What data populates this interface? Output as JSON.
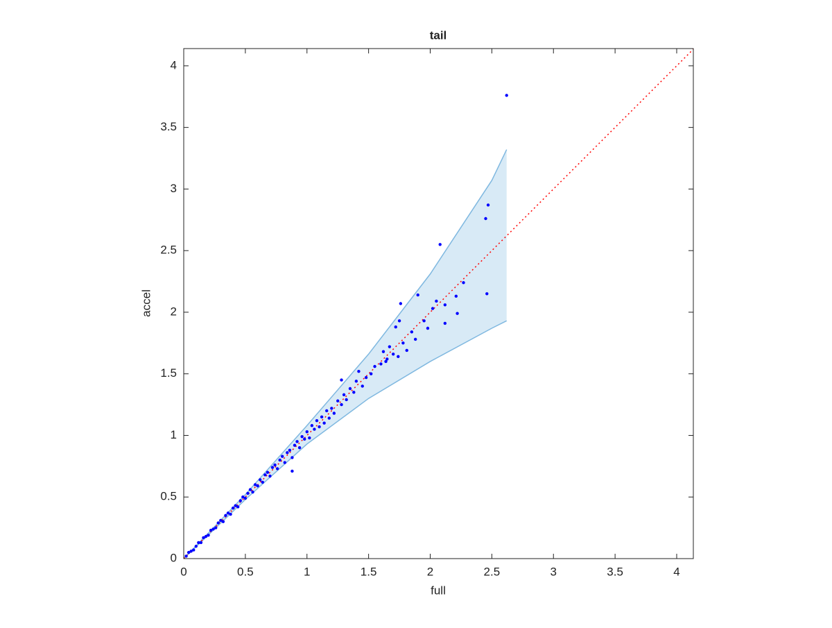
{
  "chart_data": {
    "type": "scatter",
    "title": "tail",
    "xlabel": "full",
    "ylabel": "accel",
    "xlim": [
      0,
      4.135
    ],
    "ylim": [
      0,
      4.14
    ],
    "xticks": [
      0,
      0.5,
      1,
      1.5,
      2,
      2.5,
      3,
      3.5,
      4
    ],
    "yticks": [
      0,
      0.5,
      1,
      1.5,
      2,
      2.5,
      3,
      3.5,
      4
    ],
    "band": {
      "color": "#7fb8e0",
      "x": [
        0,
        0.5,
        1,
        1.5,
        2,
        2.5,
        2.62
      ],
      "upper": [
        0,
        0.52,
        1.08,
        1.66,
        2.31,
        3.07,
        3.32
      ],
      "lower": [
        0,
        0.48,
        0.93,
        1.3,
        1.6,
        1.87,
        1.93
      ]
    },
    "reference_line": {
      "color": "#ff0000",
      "x": [
        0,
        4.135
      ],
      "y": [
        0,
        4.135
      ]
    },
    "series": [
      {
        "color": "#0000ff",
        "x": [
          0.02,
          0.04,
          0.06,
          0.08,
          0.1,
          0.12,
          0.14,
          0.16,
          0.18,
          0.2,
          0.22,
          0.24,
          0.26,
          0.28,
          0.3,
          0.32,
          0.34,
          0.36,
          0.38,
          0.4,
          0.42,
          0.44,
          0.46,
          0.48,
          0.5,
          0.52,
          0.54,
          0.56,
          0.58,
          0.6,
          0.62,
          0.64,
          0.66,
          0.68,
          0.7,
          0.72,
          0.74,
          0.76,
          0.78,
          0.8,
          0.82,
          0.84,
          0.86,
          0.88,
          0.88,
          0.9,
          0.92,
          0.94,
          0.96,
          0.98,
          1.0,
          1.02,
          1.04,
          1.06,
          1.08,
          1.1,
          1.12,
          1.14,
          1.16,
          1.18,
          1.2,
          1.22,
          1.25,
          1.28,
          1.3,
          1.32,
          1.28,
          1.35,
          1.38,
          1.4,
          1.42,
          1.45,
          1.48,
          1.52,
          1.55,
          1.6,
          1.62,
          1.65,
          1.67,
          1.7,
          1.72,
          1.75,
          1.78,
          1.81,
          1.85,
          1.88,
          1.9,
          1.95,
          1.98,
          2.02,
          2.05,
          2.12,
          2.12,
          2.21,
          2.22,
          2.27,
          2.08,
          2.45,
          2.47,
          2.46,
          2.62,
          1.76,
          1.64,
          1.74
        ],
        "y": [
          0.02,
          0.05,
          0.06,
          0.07,
          0.1,
          0.13,
          0.13,
          0.17,
          0.18,
          0.19,
          0.23,
          0.24,
          0.25,
          0.29,
          0.31,
          0.3,
          0.35,
          0.37,
          0.36,
          0.41,
          0.43,
          0.42,
          0.47,
          0.5,
          0.49,
          0.53,
          0.56,
          0.54,
          0.6,
          0.59,
          0.64,
          0.62,
          0.68,
          0.7,
          0.67,
          0.74,
          0.76,
          0.73,
          0.8,
          0.83,
          0.78,
          0.86,
          0.88,
          0.82,
          0.71,
          0.92,
          0.95,
          0.9,
          0.99,
          0.97,
          1.03,
          0.98,
          1.08,
          1.05,
          1.12,
          1.07,
          1.15,
          1.1,
          1.2,
          1.14,
          1.22,
          1.18,
          1.28,
          1.25,
          1.33,
          1.29,
          1.45,
          1.38,
          1.35,
          1.44,
          1.52,
          1.4,
          1.47,
          1.5,
          1.56,
          1.58,
          1.68,
          1.62,
          1.72,
          1.66,
          1.88,
          1.93,
          1.75,
          1.69,
          1.84,
          1.78,
          2.14,
          1.93,
          1.87,
          2.03,
          2.09,
          1.91,
          2.06,
          2.13,
          1.99,
          2.24,
          2.55,
          2.76,
          2.87,
          2.15,
          3.76,
          2.07,
          1.6,
          1.64
        ]
      }
    ]
  }
}
